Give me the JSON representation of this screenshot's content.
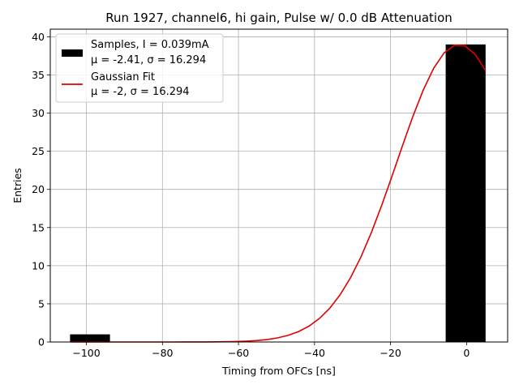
{
  "chart_data": {
    "type": "bar",
    "title": "Run 1927, channel6, hi gain, Pulse w/ 0.0 dB Attenuation",
    "xlabel": "Timing from OFCs [ns]",
    "ylabel": "Entries",
    "xlim": [
      -109.5,
      10.8
    ],
    "ylim": [
      0,
      41
    ],
    "x_ticks": [
      -100,
      -80,
      -60,
      -40,
      -20,
      0
    ],
    "x_tick_labels": [
      "−100",
      "−80",
      "−60",
      "−40",
      "−20",
      "0"
    ],
    "y_ticks": [
      0,
      5,
      10,
      15,
      20,
      25,
      30,
      35,
      40
    ],
    "y_tick_labels": [
      "0",
      "5",
      "10",
      "15",
      "20",
      "25",
      "30",
      "35",
      "40"
    ],
    "grid": true,
    "legend_position": "top-left",
    "bars": {
      "name_line1": "Samples, I = 0.039mA",
      "name_line2": "μ = -2.41, σ = 16.294",
      "color": "#000000",
      "bins": [
        {
          "x0": -104.3,
          "x1": -93.8,
          "value": 1
        },
        {
          "x0": -5.5,
          "x1": 5.0,
          "value": 39
        }
      ]
    },
    "fit": {
      "name_line1": "Gaussian Fit",
      "name_line2": "μ = -2, σ = 16.294",
      "color": "#e00000",
      "mu": -2,
      "sigma": 16.294,
      "amplitude": 39,
      "x_range": [
        -104.3,
        5.0
      ]
    }
  }
}
